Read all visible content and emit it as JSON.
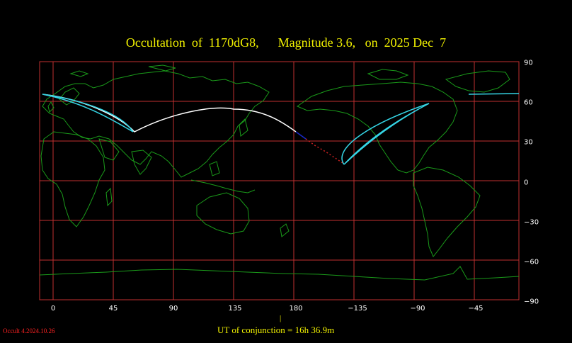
{
  "title": "Occultation  of  1170dG8,      Magnitude 3.6,   on  2025 Dec  7",
  "x_ticks": [
    "0",
    "45",
    "90",
    "135",
    "180",
    "−135",
    "−90",
    "−45"
  ],
  "y_ticks": [
    "90",
    "60",
    "30",
    "0",
    "−30",
    "−60",
    "−90"
  ],
  "conjunction_marker": "|",
  "conjunction_text": "UT of conjunction = 16h 36.9m",
  "version": "Occult 4.2024.10.26",
  "colors": {
    "title": "#f2f200",
    "grid": "#c03030",
    "coast": "#1a9a1a",
    "path_day": "#ffffff",
    "path_twilight": "#1a2acc",
    "path_night": "#cc2222",
    "limit_curves": "#35d6e6",
    "version": "#ff2222"
  },
  "icons": {
    "map": "world-map-icon"
  }
}
